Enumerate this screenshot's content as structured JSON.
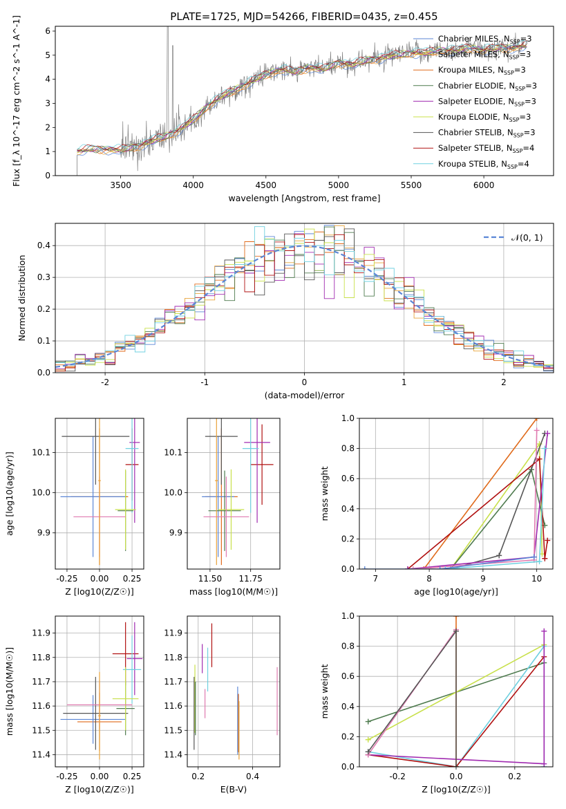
{
  "figure_title": "PLATE=1725, MJD=54266, FIBERID=0435, z=0.455",
  "colors": {
    "Chabrier MILES": "#5b86d6",
    "Salpeter MILES": "#e8a33a",
    "Kroupa MILES": "#e06a1a",
    "Chabrier ELODIE": "#4d7a4d",
    "Salpeter ELODIE": "#a02ab0",
    "Kroupa ELODIE": "#c8e04a",
    "Chabrier STELIB": "#555555",
    "Salpeter STELIB": "#b01010",
    "Kroupa STELIB": "#6fd0e0",
    "Extra": "#e07ab0",
    "data": "#808080"
  },
  "chart_data": [
    {
      "id": "spectrum",
      "type": "line",
      "title": "PLATE=1725, MJD=54266, FIBERID=0435, z=0.455",
      "xlabel": "wavelength [Angstrom, rest frame]",
      "ylabel": "Flux [f_λ 10^-17 erg cm^-2 s^-1 A^-1]",
      "xlim": [
        3050,
        6480
      ],
      "ylim": [
        0,
        6.2
      ],
      "xticks": [
        3500,
        4000,
        4500,
        5000,
        5500,
        6000
      ],
      "yticks": [
        0,
        1,
        2,
        3,
        4,
        5,
        6
      ],
      "legend_position": "top-right",
      "legend": [
        {
          "label": "Chabrier MILES",
          "nssp": "3"
        },
        {
          "label": "Salpeter MILES",
          "nssp": "3"
        },
        {
          "label": "Kroupa MILES",
          "nssp": "3"
        },
        {
          "label": "Chabrier ELODIE",
          "nssp": "3"
        },
        {
          "label": "Salpeter ELODIE",
          "nssp": "3"
        },
        {
          "label": "Kroupa ELODIE",
          "nssp": "3"
        },
        {
          "label": "Chabrier STELIB",
          "nssp": "3"
        },
        {
          "label": "Salpeter STELIB",
          "nssp": "4"
        },
        {
          "label": "Kroupa STELIB",
          "nssp": "4"
        }
      ],
      "nssp_prefix": "N",
      "nssp_sub": "SSP",
      "continuum": {
        "x": [
          3200,
          3300,
          3400,
          3500,
          3600,
          3700,
          3800,
          3900,
          4000,
          4100,
          4200,
          4300,
          4400,
          4500,
          4600,
          4700,
          4800,
          4900,
          5000,
          5100,
          5200,
          5300,
          5400,
          5500,
          5600,
          5700,
          5800,
          5900,
          6000,
          6100,
          6200,
          6300
        ],
        "y": [
          1.0,
          1.1,
          1.1,
          1.05,
          1.2,
          1.4,
          1.6,
          1.9,
          2.3,
          2.9,
          3.3,
          3.6,
          3.9,
          4.2,
          4.4,
          4.3,
          4.5,
          4.4,
          4.7,
          4.6,
          4.8,
          4.9,
          5.0,
          5.1,
          5.1,
          5.2,
          5.2,
          5.3,
          5.2,
          5.3,
          5.3,
          5.4
        ]
      }
    },
    {
      "id": "residuals",
      "type": "line",
      "xlabel": "(data-model)/error",
      "ylabel": "Normed distribution",
      "xlim": [
        -2.5,
        2.5
      ],
      "ylim": [
        0,
        0.47
      ],
      "xticks": [
        -2,
        -1,
        0,
        1,
        2
      ],
      "yticks": [
        0.0,
        0.1,
        0.2,
        0.3,
        0.4
      ],
      "legend_position": "top-right",
      "legend_label": "𝒩(0, 1)",
      "grid": true
    },
    {
      "id": "age_vs_Z",
      "type": "scatter",
      "xlabel": "Z [log10(Z/Z☉)]",
      "ylabel": "age [log10(age/yr)]",
      "xlim": [
        -0.34,
        0.34
      ],
      "ylim": [
        9.81,
        10.185
      ],
      "xticks": [
        -0.25,
        0.0,
        0.25
      ],
      "yticks": [
        9.9,
        10.0,
        10.1
      ],
      "grid": true,
      "points": [
        {
          "x": 0.0,
          "y": 9.99,
          "ex": 0.22,
          "ey": 0.17,
          "c": "Kroupa MILES"
        },
        {
          "x": -0.05,
          "y": 9.99,
          "ex": 0.25,
          "ey": 0.15,
          "c": "Chabrier MILES"
        },
        {
          "x": -0.03,
          "y": 10.14,
          "ex": 0.26,
          "ey": 0.12,
          "c": "Chabrier STELIB"
        },
        {
          "x": 0.25,
          "y": 10.07,
          "ex": 0.05,
          "ey": 0.09,
          "c": "Salpeter STELIB"
        },
        {
          "x": 0.27,
          "y": 10.125,
          "ex": 0.04,
          "ey": 0.2,
          "c": "Salpeter ELODIE"
        },
        {
          "x": 0.25,
          "y": 10.11,
          "ex": 0.05,
          "ey": 0.16,
          "c": "Kroupa STELIB"
        },
        {
          "x": 0.2,
          "y": 9.955,
          "ex": 0.06,
          "ey": 0.1,
          "c": "Chabrier ELODIE"
        },
        {
          "x": 0.2,
          "y": 9.958,
          "ex": 0.08,
          "ey": 0.1,
          "c": "Kroupa ELODIE"
        },
        {
          "x": 0.0,
          "y": 9.94,
          "ex": 0.2,
          "ey": 0.1,
          "c": "Extra"
        },
        {
          "x": 0.0,
          "y": 10.03,
          "ex": 0.01,
          "ey": 0.21,
          "c": "Salpeter MILES"
        }
      ]
    },
    {
      "id": "age_vs_mass",
      "type": "scatter",
      "xlabel": "mass [log10(M/M☉)]",
      "ylabel": "",
      "xlim": [
        11.36,
        11.93
      ],
      "ylim": [
        9.81,
        10.185
      ],
      "xticks": [
        11.5,
        11.75
      ],
      "yticks": [
        9.9,
        10.0,
        10.1
      ],
      "grid": true,
      "points": [
        {
          "x": 11.57,
          "y": 9.99,
          "ex": 0.1,
          "ey": 0.17,
          "c": "Kroupa MILES"
        },
        {
          "x": 11.55,
          "y": 9.99,
          "ex": 0.1,
          "ey": 0.15,
          "c": "Chabrier MILES"
        },
        {
          "x": 11.57,
          "y": 10.14,
          "ex": 0.1,
          "ey": 0.12,
          "c": "Chabrier STELIB"
        },
        {
          "x": 11.82,
          "y": 10.07,
          "ex": 0.07,
          "ey": 0.1,
          "c": "Salpeter STELIB"
        },
        {
          "x": 11.79,
          "y": 10.125,
          "ex": 0.08,
          "ey": 0.2,
          "c": "Salpeter ELODIE"
        },
        {
          "x": 11.75,
          "y": 10.11,
          "ex": 0.05,
          "ey": 0.16,
          "c": "Kroupa STELIB"
        },
        {
          "x": 11.59,
          "y": 9.955,
          "ex": 0.1,
          "ey": 0.1,
          "c": "Chabrier ELODIE"
        },
        {
          "x": 11.63,
          "y": 9.958,
          "ex": 0.08,
          "ey": 0.1,
          "c": "Kroupa ELODIE"
        },
        {
          "x": 11.6,
          "y": 9.94,
          "ex": 0.14,
          "ey": 0.1,
          "c": "Extra"
        },
        {
          "x": 11.54,
          "y": 10.03,
          "ex": 0.01,
          "ey": 0.21,
          "c": "Salpeter MILES"
        }
      ]
    },
    {
      "id": "massweight_vs_age",
      "type": "line",
      "xlabel": "age [log10(age/yr)]",
      "ylabel": "mass weight",
      "xlim": [
        6.7,
        10.3
      ],
      "ylim": [
        0,
        1.0
      ],
      "xticks": [
        7,
        8,
        9,
        10
      ],
      "yticks": [
        0.0,
        0.2,
        0.4,
        0.6,
        0.8,
        1.0
      ],
      "grid": true,
      "series": [
        {
          "c": "Kroupa MILES",
          "x": [
            7.9,
            10.0
          ],
          "y": [
            0.0,
            1.0
          ]
        },
        {
          "c": "Kroupa ELODIE",
          "x": [
            8.4,
            10.05,
            10.1
          ],
          "y": [
            0.0,
            0.83,
            0.1
          ]
        },
        {
          "c": "Chabrier ELODIE",
          "x": [
            8.4,
            9.9,
            10.15
          ],
          "y": [
            0.0,
            0.66,
            0.29
          ]
        },
        {
          "c": "Chabrier STELIB",
          "x": [
            8.4,
            9.3,
            10.15
          ],
          "y": [
            0.0,
            0.09,
            0.9
          ]
        },
        {
          "c": "Salpeter STELIB",
          "x": [
            7.6,
            10.05,
            10.15,
            10.2
          ],
          "y": [
            0.0,
            0.73,
            0.07,
            0.19
          ]
        },
        {
          "c": "Salpeter ELODIE",
          "x": [
            7.6,
            9.95,
            10.2
          ],
          "y": [
            0.0,
            0.08,
            0.9
          ]
        },
        {
          "c": "Extra",
          "x": [
            7.7,
            9.95,
            10.0
          ],
          "y": [
            0.0,
            0.06,
            0.92
          ]
        },
        {
          "c": "Kroupa STELIB",
          "x": [
            8.3,
            10.05,
            10.15
          ],
          "y": [
            0.0,
            0.05,
            0.8
          ]
        },
        {
          "c": "Chabrier MILES",
          "x": [
            6.8,
            8.2,
            9.95
          ],
          "y": [
            0.0,
            0.0,
            0.08
          ]
        }
      ]
    },
    {
      "id": "mass_vs_Z",
      "type": "scatter",
      "xlabel": "Z [log10(Z/Z☉)]",
      "ylabel": "mass [log10(M/M☉)]",
      "xlim": [
        -0.34,
        0.34
      ],
      "ylim": [
        11.35,
        11.97
      ],
      "xticks": [
        -0.25,
        0.0,
        0.25
      ],
      "yticks": [
        11.4,
        11.5,
        11.6,
        11.7,
        11.8,
        11.9
      ],
      "grid": true,
      "points": [
        {
          "x": 0.0,
          "y": 11.535,
          "ex": 0.17,
          "ey": 0.12,
          "c": "Kroupa MILES"
        },
        {
          "x": -0.05,
          "y": 11.545,
          "ex": 0.25,
          "ey": 0.1,
          "c": "Chabrier MILES"
        },
        {
          "x": -0.03,
          "y": 11.57,
          "ex": 0.25,
          "ey": 0.15,
          "c": "Chabrier STELIB"
        },
        {
          "x": 0.2,
          "y": 11.815,
          "ex": 0.1,
          "ey": 0.13,
          "c": "Salpeter STELIB"
        },
        {
          "x": 0.27,
          "y": 11.795,
          "ex": 0.06,
          "ey": 0.15,
          "c": "Salpeter ELODIE"
        },
        {
          "x": 0.25,
          "y": 11.75,
          "ex": 0.07,
          "ey": 0.14,
          "c": "Kroupa STELIB"
        },
        {
          "x": 0.2,
          "y": 11.59,
          "ex": 0.07,
          "ey": 0.11,
          "c": "Chabrier ELODIE"
        },
        {
          "x": 0.2,
          "y": 11.63,
          "ex": 0.1,
          "ey": 0.13,
          "c": "Kroupa ELODIE"
        },
        {
          "x": 0.0,
          "y": 11.605,
          "ex": 0.25,
          "ey": 0.1,
          "c": "Extra"
        },
        {
          "x": 0.0,
          "y": 11.56,
          "ex": 0.01,
          "ey": 0.18,
          "c": "Salpeter MILES"
        }
      ]
    },
    {
      "id": "mass_vs_ebv",
      "type": "scatter",
      "xlabel": "E(B-V)",
      "ylabel": "",
      "xlim": [
        0.16,
        0.5
      ],
      "ylim": [
        11.35,
        11.97
      ],
      "xticks": [
        0.2,
        0.4
      ],
      "yticks": [
        11.4,
        11.5,
        11.6,
        11.7,
        11.8,
        11.9
      ],
      "grid": true,
      "points": [
        {
          "x": 0.185,
          "y": 11.57,
          "ex": 0.0,
          "ey": 0.15,
          "c": "Chabrier STELIB"
        },
        {
          "x": 0.188,
          "y": 11.63,
          "ex": 0.0,
          "ey": 0.14,
          "c": "Kroupa ELODIE"
        },
        {
          "x": 0.19,
          "y": 11.59,
          "ex": 0.0,
          "ey": 0.11,
          "c": "Chabrier ELODIE"
        },
        {
          "x": 0.215,
          "y": 11.795,
          "ex": 0.0,
          "ey": 0.06,
          "c": "Salpeter ELODIE"
        },
        {
          "x": 0.225,
          "y": 11.61,
          "ex": 0.0,
          "ey": 0.06,
          "c": "Extra"
        },
        {
          "x": 0.235,
          "y": 11.75,
          "ex": 0.0,
          "ey": 0.09,
          "c": "Kroupa STELIB"
        },
        {
          "x": 0.25,
          "y": 11.85,
          "ex": 0.0,
          "ey": 0.09,
          "c": "Salpeter STELIB"
        },
        {
          "x": 0.345,
          "y": 11.54,
          "ex": 0.0,
          "ey": 0.14,
          "c": "Chabrier MILES"
        },
        {
          "x": 0.348,
          "y": 11.53,
          "ex": 0.0,
          "ey": 0.12,
          "c": "Kroupa MILES"
        },
        {
          "x": 0.35,
          "y": 11.5,
          "ex": 0.0,
          "ey": 0.12,
          "c": "Salpeter MILES"
        },
        {
          "x": 0.49,
          "y": 11.62,
          "ex": 0.0,
          "ey": 0.14,
          "c": "Extra"
        }
      ]
    },
    {
      "id": "massweight_vs_Z",
      "type": "line",
      "xlabel": "Z [log10(Z/Z☉)]",
      "ylabel": "mass weight",
      "xlim": [
        -0.33,
        0.33
      ],
      "ylim": [
        0,
        1.0
      ],
      "xticks": [
        -0.2,
        0.0,
        0.2
      ],
      "yticks": [
        0.0,
        0.2,
        0.4,
        0.6,
        0.8,
        1.0
      ],
      "grid": true,
      "series": [
        {
          "c": "Chabrier ELODIE",
          "x": [
            -0.3,
            0.3
          ],
          "y": [
            0.3,
            0.69
          ]
        },
        {
          "c": "Kroupa ELODIE",
          "x": [
            -0.3,
            0.3
          ],
          "y": [
            0.18,
            0.81
          ]
        },
        {
          "c": "Kroupa STELIB",
          "x": [
            -0.3,
            0.0,
            0.3,
            0.3
          ],
          "y": [
            0.1,
            0.0,
            0.8,
            0.0
          ]
        },
        {
          "c": "Salpeter STELIB",
          "x": [
            -0.3,
            0.0,
            0.3
          ],
          "y": [
            0.08,
            0.0,
            0.73
          ]
        },
        {
          "c": "Salpeter ELODIE",
          "x": [
            -0.3,
            0.3,
            0.3
          ],
          "y": [
            0.08,
            0.02,
            0.9
          ]
        },
        {
          "c": "Extra",
          "x": [
            -0.3,
            0.0
          ],
          "y": [
            0.08,
            0.91
          ]
        },
        {
          "c": "Kroupa MILES",
          "x": [
            0.0,
            0.0
          ],
          "y": [
            0.0,
            1.0
          ]
        },
        {
          "c": "Chabrier STELIB",
          "x": [
            -0.3,
            0.0,
            0.0
          ],
          "y": [
            0.1,
            0.9,
            0.0
          ]
        }
      ]
    }
  ]
}
